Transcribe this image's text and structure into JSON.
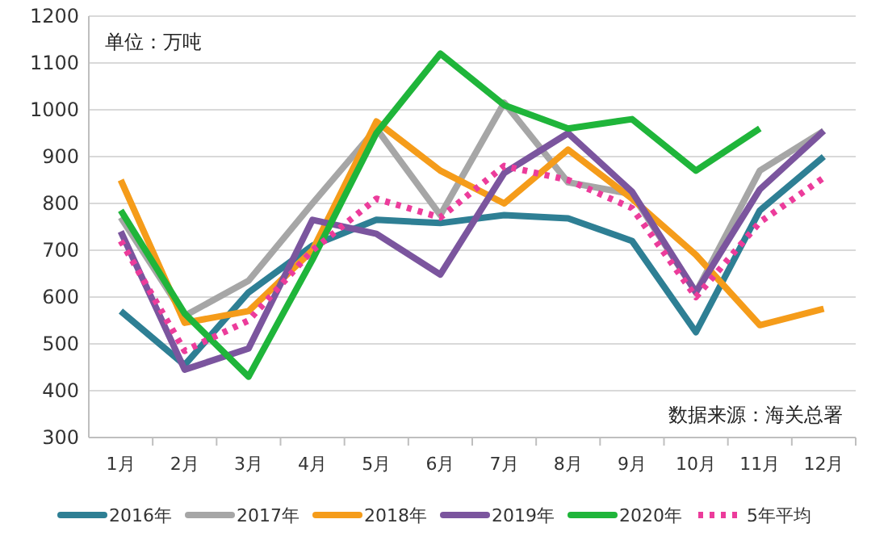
{
  "chart_data": {
    "type": "line",
    "categories": [
      "1月",
      "2月",
      "3月",
      "4月",
      "5月",
      "6月",
      "7月",
      "8月",
      "9月",
      "10月",
      "11月",
      "12月"
    ],
    "ylim": [
      300,
      1200
    ],
    "yticks": [
      300,
      400,
      500,
      600,
      700,
      800,
      900,
      1000,
      1100,
      1200
    ],
    "grid": "y",
    "legend": "bottom",
    "annotations": [
      "单位：万吨",
      "数据来源：海关总署"
    ],
    "series": [
      {
        "name": "2016年",
        "color": "#2e7f94",
        "values": [
          570,
          455,
          610,
          710,
          765,
          758,
          775,
          768,
          720,
          525,
          785,
          900
        ]
      },
      {
        "name": "2017年",
        "color": "#a6a6a6",
        "values": [
          770,
          560,
          635,
          800,
          960,
          775,
          1015,
          845,
          820,
          610,
          870,
          955
        ]
      },
      {
        "name": "2018年",
        "color": "#f59c1a",
        "values": [
          850,
          545,
          570,
          700,
          975,
          870,
          800,
          915,
          810,
          690,
          540,
          575
        ]
      },
      {
        "name": "2019年",
        "color": "#7b559e",
        "values": [
          740,
          445,
          490,
          765,
          735,
          648,
          865,
          950,
          825,
          610,
          830,
          955
        ]
      },
      {
        "name": "2020年",
        "color": "#1fb53a",
        "values": [
          785,
          565,
          430,
          680,
          950,
          1120,
          1010,
          960,
          980,
          870,
          960,
          null
        ]
      },
      {
        "name": "5年平均",
        "color": "#ec3c9b",
        "line_style": "dotted",
        "values": [
          720,
          485,
          550,
          700,
          810,
          770,
          880,
          850,
          790,
          600,
          760,
          855
        ]
      }
    ]
  }
}
